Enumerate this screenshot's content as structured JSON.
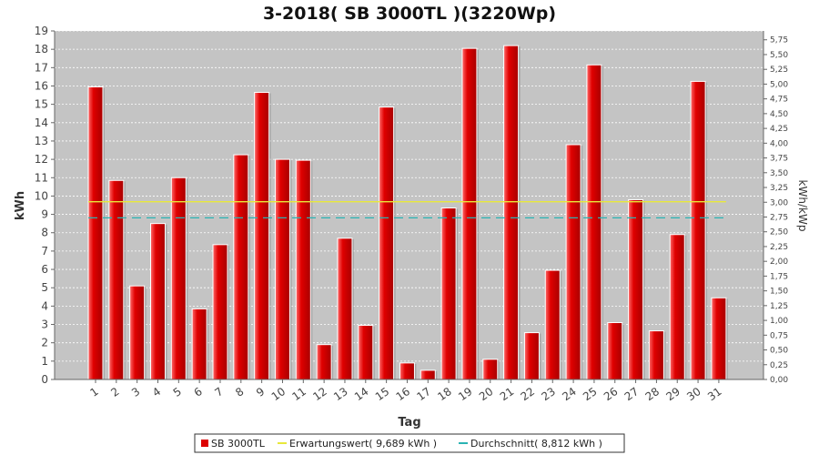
{
  "chart_data": {
    "type": "bar",
    "title": "3-2018( SB 3000TL )(3220Wp)",
    "xlabel": "Tag",
    "ylabel": "kWh",
    "y2label": "kWh/kWp",
    "ylim": [
      0,
      19
    ],
    "y2lim": [
      0,
      5.9
    ],
    "grid": true,
    "legend_position": "bottom",
    "categories": [
      "1",
      "2",
      "3",
      "4",
      "5",
      "6",
      "7",
      "8",
      "9",
      "10",
      "11",
      "12",
      "13",
      "14",
      "15",
      "16",
      "17",
      "18",
      "19",
      "20",
      "21",
      "22",
      "23",
      "24",
      "25",
      "26",
      "27",
      "28",
      "29",
      "30",
      "31"
    ],
    "y_ticks": [
      "0",
      "1",
      "2",
      "3",
      "4",
      "5",
      "6",
      "7",
      "8",
      "9",
      "10",
      "11",
      "12",
      "13",
      "14",
      "15",
      "16",
      "17",
      "18",
      "19"
    ],
    "y2_ticks": [
      "0,00",
      "0,25",
      "0,50",
      "0,75",
      "1,00",
      "1,25",
      "1,50",
      "1,75",
      "2,00",
      "2,25",
      "2,50",
      "2,75",
      "3,00",
      "3,25",
      "3,50",
      "3,75",
      "4,00",
      "4,25",
      "4,50",
      "4,75",
      "5,00",
      "5,25",
      "5,50",
      "5,75"
    ],
    "series": [
      {
        "name": "SB 3000TL",
        "color": "#dd0000",
        "values": [
          15.95,
          10.85,
          5.1,
          8.5,
          11.0,
          3.85,
          7.35,
          12.25,
          15.65,
          12.0,
          11.95,
          1.9,
          7.7,
          2.95,
          14.85,
          0.9,
          0.5,
          9.35,
          18.05,
          1.1,
          18.2,
          2.55,
          5.95,
          12.8,
          17.15,
          3.1,
          9.8,
          2.65,
          7.9,
          16.25,
          4.45
        ]
      }
    ],
    "reference_lines": [
      {
        "name": "Erwartungswert",
        "value": 9.689,
        "color": "#e8e83a",
        "style": "solid"
      },
      {
        "name": "Durchschnitt",
        "value": 8.812,
        "color": "#2ab3b3",
        "style": "dashed"
      }
    ]
  },
  "legend": {
    "series_label": "SB 3000TL",
    "expected_label": "Erwartungswert( 9,689 kWh )",
    "average_label": "Durchschnitt( 8,812 kWh )"
  }
}
